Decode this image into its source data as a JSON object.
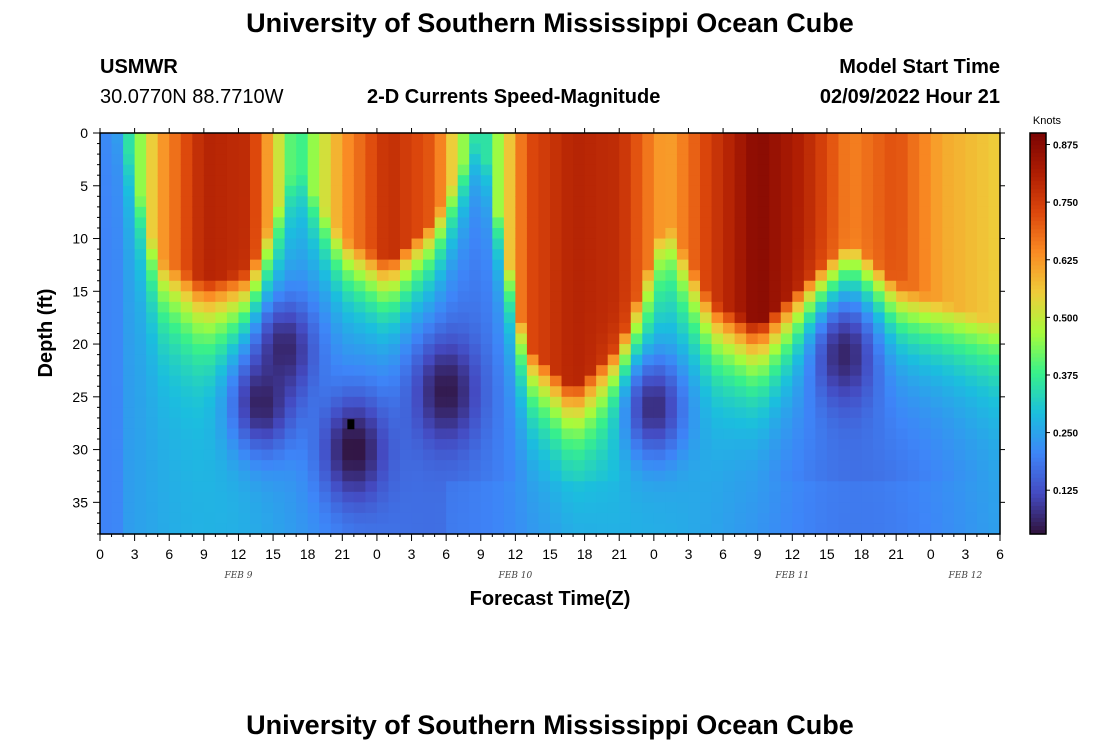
{
  "header": {
    "title": "University of Southern Mississippi Ocean Cube",
    "station": "USMWR",
    "location": "30.0770N  88.7710W",
    "product": "2-D Currents Speed-Magnitude",
    "model_label": "Model Start Time",
    "model_time": "02/09/2022 Hour 21"
  },
  "footer": {
    "title": "University of Southern Mississippi Ocean Cube"
  },
  "chart_data": {
    "type": "heatmap",
    "xlabel": "Forecast Time(Z)",
    "ylabel": "Depth (ft)",
    "x_tick_labels": [
      "0",
      "3",
      "6",
      "9",
      "12",
      "15",
      "18",
      "21",
      "0",
      "3",
      "6",
      "9",
      "12",
      "15",
      "18",
      "21",
      "0",
      "3",
      "6",
      "9",
      "12",
      "15",
      "18",
      "21",
      "0",
      "3",
      "6"
    ],
    "date_labels": [
      {
        "text": "FEB 9",
        "hour": 12
      },
      {
        "text": "FEB 10",
        "hour": 36
      },
      {
        "text": "FEB 11",
        "hour": 60
      },
      {
        "text": "FEB 12",
        "hour": 75
      }
    ],
    "x_range_hours": [
      0,
      78
    ],
    "y_range_ft": [
      0,
      38
    ],
    "y_ticks": [
      0,
      5,
      10,
      15,
      20,
      25,
      30,
      35
    ],
    "colorbar": {
      "title": "Knots",
      "range": [
        0.03,
        0.9
      ],
      "ticks": [
        "0.875",
        "0.750",
        "0.625",
        "0.500",
        "0.375",
        "0.250",
        "0.125"
      ],
      "tick_values": [
        0.875,
        0.75,
        0.625,
        0.5,
        0.375,
        0.25,
        0.125
      ]
    },
    "surface_band": {
      "comment_free_values": true,
      "hours": [
        0,
        2,
        5,
        9,
        13,
        17,
        21,
        25,
        29,
        33,
        37,
        41,
        45,
        49,
        53,
        57,
        61,
        65,
        69,
        73,
        78
      ],
      "surface_speed_kn": [
        0.22,
        0.3,
        0.6,
        0.8,
        0.78,
        0.35,
        0.62,
        0.78,
        0.7,
        0.3,
        0.72,
        0.8,
        0.78,
        0.6,
        0.75,
        0.88,
        0.8,
        0.65,
        0.72,
        0.6,
        0.55
      ],
      "band_depth_ft": [
        0,
        0,
        12,
        14,
        13,
        3,
        10,
        12,
        8,
        0,
        20,
        24,
        20,
        8,
        16,
        18,
        14,
        10,
        14,
        16,
        18
      ]
    },
    "deep_minima": [
      {
        "hour": 14,
        "depth_ft": 25.5,
        "speed_kn": 0.05
      },
      {
        "hour": 16,
        "depth_ft": 20.5,
        "speed_kn": 0.06
      },
      {
        "hour": 22,
        "depth_ft": 30,
        "speed_kn": 0.03
      },
      {
        "hour": 30,
        "depth_ft": 24.5,
        "speed_kn": 0.04
      },
      {
        "hour": 48,
        "depth_ft": 26,
        "speed_kn": 0.07
      },
      {
        "hour": 64.5,
        "depth_ft": 21,
        "speed_kn": 0.06
      }
    ]
  }
}
